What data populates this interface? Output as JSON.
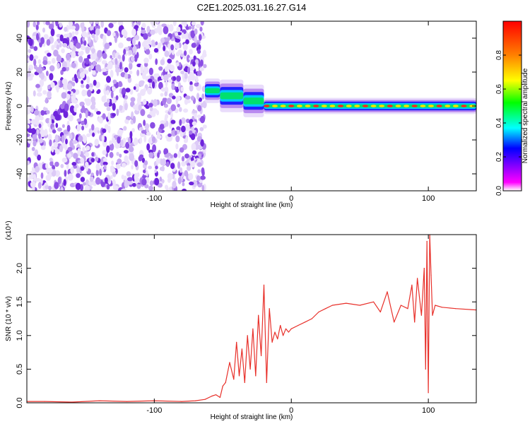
{
  "title": "C2E1.2025.031.16.27.G14",
  "chart_data": [
    {
      "type": "heatmap",
      "name": "spectrogram",
      "xlabel": "Height of straight line (km)",
      "ylabel": "Frequency (Hz)",
      "xlim": [
        -193,
        135
      ],
      "ylim": [
        -50,
        50
      ],
      "xticks": [
        -100,
        0,
        100
      ],
      "yticks": [
        -40,
        -20,
        0,
        20,
        40
      ],
      "grid": false,
      "noise_region_x": [
        -193,
        -63
      ],
      "signal_bands": [
        {
          "x": [
            -63,
            -52
          ],
          "f_center": 9,
          "f_halfwidth": 3
        },
        {
          "x": [
            -52,
            -35
          ],
          "f_center": 6,
          "f_halfwidth": 4
        },
        {
          "x": [
            -35,
            -20
          ],
          "f_center": 3,
          "f_halfwidth": 4
        },
        {
          "x": [
            -20,
            135
          ],
          "f_center": 0,
          "f_halfwidth": 2
        }
      ],
      "colorbar": {
        "label": "Normalized spectral amplitude",
        "range": [
          0,
          1
        ],
        "ticks": [
          "0.0",
          "0.2",
          "0.4",
          "0.6",
          "0.8"
        ],
        "tick_values": [
          0.0,
          0.2,
          0.4,
          0.6,
          0.8
        ],
        "colormap": [
          "#ffffff",
          "#ff00ff",
          "#8000ff",
          "#0000ff",
          "#00ffff",
          "#00ff00",
          "#ffff00",
          "#ff8000",
          "#ff0000"
        ]
      }
    },
    {
      "type": "line",
      "name": "snr",
      "xlabel": "Height of straight line (km)",
      "ylabel": "SNR (10 * v/v)",
      "y_multiplier": "(x10⁴)",
      "xlim": [
        -193,
        135
      ],
      "ylim": [
        0,
        2.5
      ],
      "xticks": [
        -100,
        0,
        100
      ],
      "yticks": [
        "0.0",
        "0.5",
        "1.0",
        "1.5",
        "2.0"
      ],
      "ytick_values": [
        0.0,
        0.5,
        1.0,
        1.5,
        2.0
      ],
      "color": "#e8302a",
      "grid": false,
      "x": [
        -193,
        -180,
        -160,
        -140,
        -120,
        -100,
        -80,
        -70,
        -63,
        -58,
        -55,
        -52,
        -50,
        -48,
        -45,
        -42,
        -40,
        -38,
        -36,
        -34,
        -32,
        -30,
        -28,
        -26,
        -24,
        -22,
        -20,
        -18,
        -16,
        -14,
        -12,
        -10,
        -8,
        -6,
        -4,
        -2,
        0,
        5,
        10,
        15,
        20,
        25,
        30,
        40,
        50,
        60,
        65,
        70,
        75,
        80,
        85,
        88,
        90,
        92,
        95,
        97,
        98,
        99,
        100,
        101,
        102,
        103,
        105,
        110,
        120,
        135
      ],
      "y": [
        0.02,
        0.02,
        0.01,
        0.03,
        0.02,
        0.03,
        0.02,
        0.03,
        0.05,
        0.1,
        0.12,
        0.08,
        0.25,
        0.3,
        0.6,
        0.35,
        0.9,
        0.4,
        0.8,
        0.3,
        1.0,
        0.5,
        1.1,
        0.4,
        1.3,
        0.7,
        1.75,
        0.3,
        1.4,
        0.9,
        1.05,
        0.95,
        1.15,
        1.0,
        1.1,
        1.05,
        1.1,
        1.15,
        1.2,
        1.25,
        1.35,
        1.4,
        1.45,
        1.48,
        1.45,
        1.5,
        1.35,
        1.65,
        1.2,
        1.45,
        1.4,
        1.75,
        1.2,
        1.85,
        1.3,
        2.0,
        0.5,
        2.4,
        0.15,
        2.5,
        1.9,
        1.3,
        1.45,
        1.42,
        1.4,
        1.38
      ]
    }
  ]
}
